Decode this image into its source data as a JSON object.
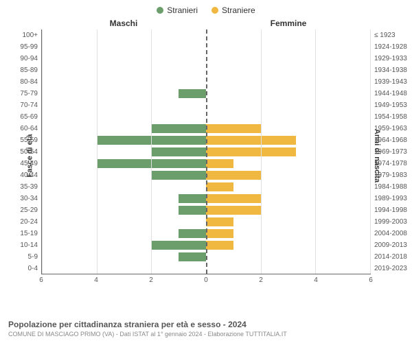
{
  "legend": {
    "male_label": "Stranieri",
    "female_label": "Straniere",
    "male_color": "#6b9e6b",
    "female_color": "#f0b840"
  },
  "headers": {
    "left": "Maschi",
    "right": "Femmine"
  },
  "axis_labels": {
    "left": "Fasce di età",
    "right": "Anni di nascita"
  },
  "chart": {
    "type": "population-pyramid",
    "xmax": 6,
    "xticks": [
      6,
      4,
      2,
      0,
      2,
      4,
      6
    ],
    "background_color": "#ffffff",
    "grid_color": "#e0e0e0",
    "male_color": "#6b9e6b",
    "female_color": "#f0b840",
    "rows": [
      {
        "age": "100+",
        "year": "≤ 1923",
        "m": 0,
        "f": 0
      },
      {
        "age": "95-99",
        "year": "1924-1928",
        "m": 0,
        "f": 0
      },
      {
        "age": "90-94",
        "year": "1929-1933",
        "m": 0,
        "f": 0
      },
      {
        "age": "85-89",
        "year": "1934-1938",
        "m": 0,
        "f": 0
      },
      {
        "age": "80-84",
        "year": "1939-1943",
        "m": 0,
        "f": 0
      },
      {
        "age": "75-79",
        "year": "1944-1948",
        "m": 1,
        "f": 0
      },
      {
        "age": "70-74",
        "year": "1949-1953",
        "m": 0,
        "f": 0
      },
      {
        "age": "65-69",
        "year": "1954-1958",
        "m": 0,
        "f": 0
      },
      {
        "age": "60-64",
        "year": "1959-1963",
        "m": 2,
        "f": 2
      },
      {
        "age": "55-59",
        "year": "1964-1968",
        "m": 4,
        "f": 3.3
      },
      {
        "age": "50-54",
        "year": "1969-1973",
        "m": 2,
        "f": 3.3
      },
      {
        "age": "45-49",
        "year": "1974-1978",
        "m": 4,
        "f": 1
      },
      {
        "age": "40-44",
        "year": "1979-1983",
        "m": 2,
        "f": 2
      },
      {
        "age": "35-39",
        "year": "1984-1988",
        "m": 0,
        "f": 1
      },
      {
        "age": "30-34",
        "year": "1989-1993",
        "m": 1,
        "f": 2
      },
      {
        "age": "25-29",
        "year": "1994-1998",
        "m": 1,
        "f": 2
      },
      {
        "age": "20-24",
        "year": "1999-2003",
        "m": 0,
        "f": 1
      },
      {
        "age": "15-19",
        "year": "2004-2008",
        "m": 1,
        "f": 1
      },
      {
        "age": "10-14",
        "year": "2009-2013",
        "m": 2,
        "f": 1
      },
      {
        "age": "5-9",
        "year": "2014-2018",
        "m": 1,
        "f": 0
      },
      {
        "age": "0-4",
        "year": "2019-2023",
        "m": 0,
        "f": 0
      }
    ]
  },
  "footer": {
    "title": "Popolazione per cittadinanza straniera per età e sesso - 2024",
    "subtitle": "COMUNE DI MASCIAGO PRIMO (VA) - Dati ISTAT al 1° gennaio 2024 - Elaborazione TUTTITALIA.IT"
  }
}
